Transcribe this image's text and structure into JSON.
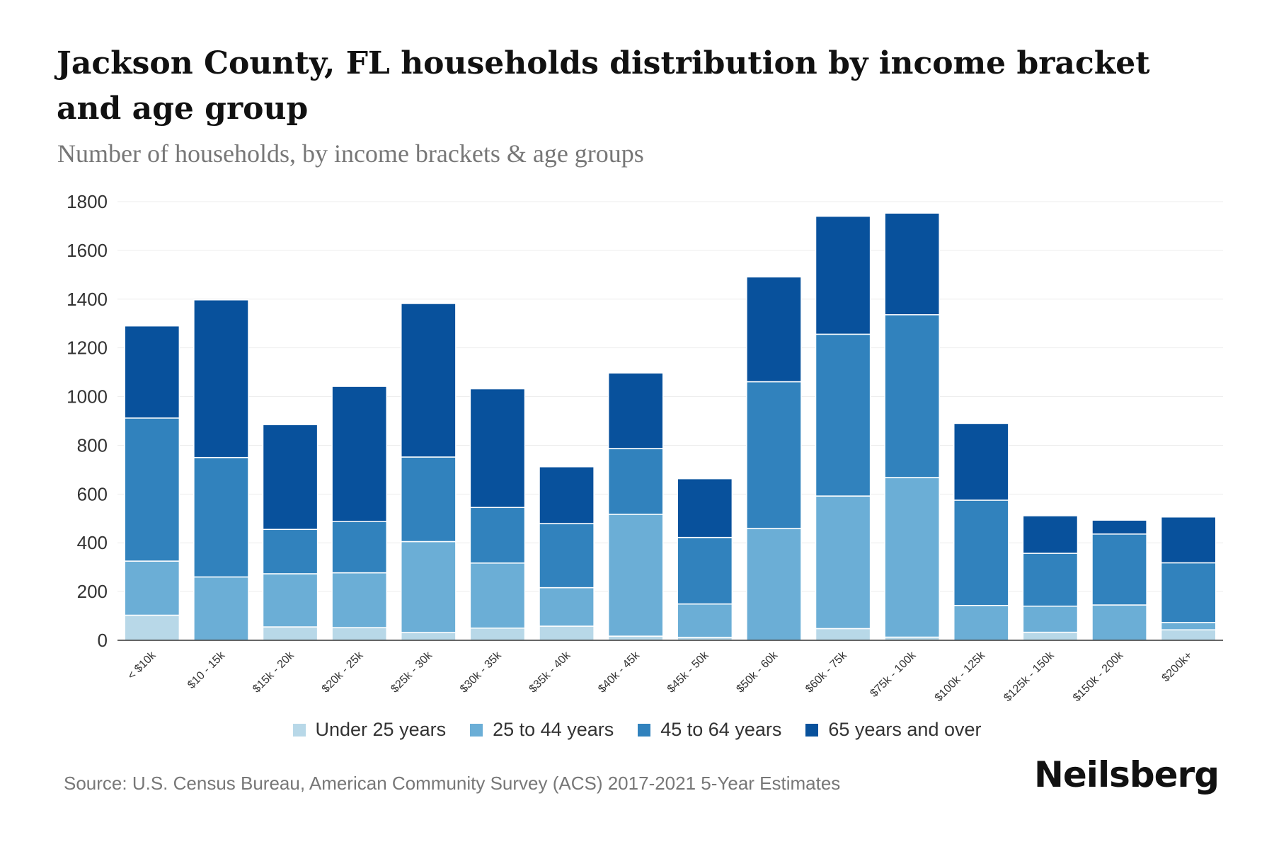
{
  "title": "Jackson County, FL households distribution by income bracket and age group",
  "subtitle": "Number of households, by income brackets & age groups",
  "source": "Source: U.S. Census Bureau, American Community Survey (ACS) 2017-2021 5-Year Estimates",
  "brand": "Neilsberg",
  "colors": {
    "under25": "#b8d8e8",
    "age25to44": "#6baed6",
    "age45to64": "#3182bd",
    "age65plus": "#08519c",
    "grid": "#eeeeee",
    "axis": "#333333",
    "tick_text": "#333333"
  },
  "chart_data": {
    "type": "bar",
    "stacked": true,
    "categories": [
      "< $10k",
      "$10 - 15k",
      "$15k - 20k",
      "$20k - 25k",
      "$25k - 30k",
      "$30k - 35k",
      "$35k - 40k",
      "$40k - 45k",
      "$45k - 50k",
      "$50k - 60k",
      "$60k - 75k",
      "$75k - 100k",
      "$100k - 125k",
      "$125k - 150k",
      "$150k - 200k",
      "$200k+"
    ],
    "series": [
      {
        "name": "Under 25 years",
        "color": "#b8d8e8",
        "values": [
          103,
          0,
          55,
          52,
          32,
          50,
          58,
          17,
          12,
          0,
          48,
          13,
          0,
          33,
          0,
          43
        ]
      },
      {
        "name": "25 to 44 years",
        "color": "#6baed6",
        "values": [
          222,
          260,
          218,
          225,
          373,
          267,
          158,
          500,
          137,
          459,
          544,
          655,
          143,
          107,
          145,
          30
        ]
      },
      {
        "name": "45 to 64 years",
        "color": "#3182bd",
        "values": [
          587,
          490,
          182,
          210,
          347,
          228,
          263,
          270,
          273,
          602,
          664,
          668,
          432,
          217,
          291,
          245
        ]
      },
      {
        "name": "65 years and over",
        "color": "#08519c",
        "values": [
          378,
          647,
          430,
          555,
          630,
          487,
          233,
          310,
          241,
          430,
          484,
          417,
          315,
          154,
          57,
          188
        ]
      }
    ],
    "ylim": [
      0,
      1800
    ],
    "yticks": [
      "0",
      "200",
      "400",
      "600",
      "800",
      "1000",
      "1200",
      "1400",
      "1600",
      "1800"
    ],
    "grid": true,
    "legend_position": "bottom"
  }
}
